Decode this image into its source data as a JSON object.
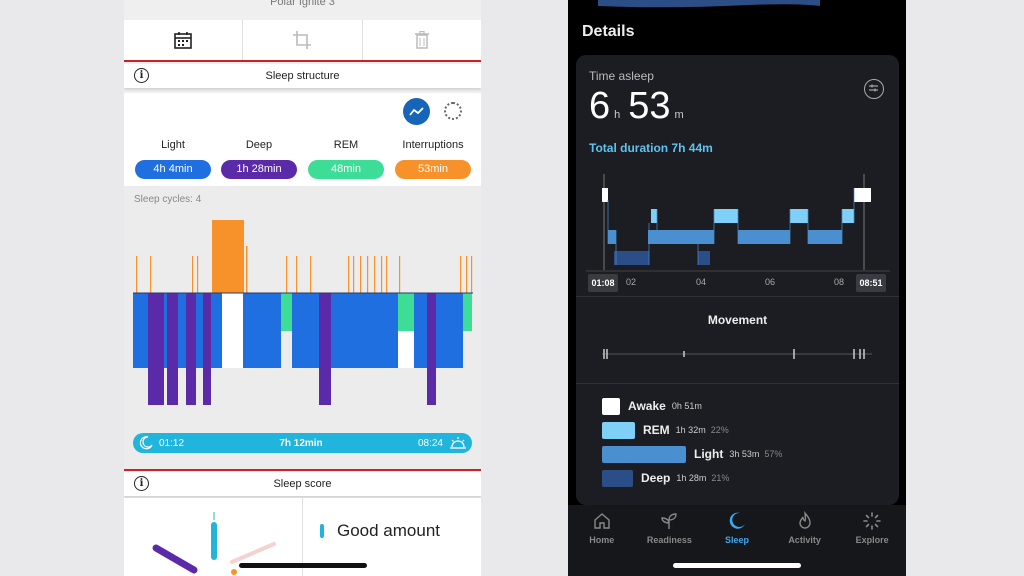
{
  "left_phone": {
    "device_name": "Polar Ignite 3",
    "toolbar": {
      "icons": [
        "calendar-icon",
        "crop-icon",
        "trash-icon"
      ]
    },
    "sleep_structure": {
      "title": "Sleep structure",
      "stages": [
        {
          "label": "Light",
          "value": "4h 4min",
          "color": "#1f6fe0"
        },
        {
          "label": "Deep",
          "value": "1h 28min",
          "color": "#5a2aa8"
        },
        {
          "label": "REM",
          "value": "48min",
          "color": "#3ddc97"
        },
        {
          "label": "Interruptions",
          "value": "53min",
          "color": "#f7922b"
        }
      ],
      "sleep_cycles": "Sleep cycles: 4",
      "timeline": {
        "start": "01:12",
        "duration": "7h 12min",
        "end": "08:24"
      }
    },
    "sleep_score": {
      "title": "Sleep score",
      "item": "Good amount"
    }
  },
  "right_phone": {
    "section_title": "Details",
    "time_asleep": {
      "label": "Time asleep",
      "hours": "6",
      "hours_unit": "h",
      "minutes": "53",
      "minutes_unit": "m",
      "total": "Total duration 7h 44m"
    },
    "hypnogram": {
      "start_time": "01:08",
      "end_time": "08:51",
      "ticks": [
        "02",
        "04",
        "06",
        "08"
      ]
    },
    "movement_title": "Movement",
    "legend": [
      {
        "name": "Awake",
        "duration": "0h 51m",
        "percent": "",
        "color": "#ffffff"
      },
      {
        "name": "REM",
        "duration": "1h 32m",
        "percent": "22%",
        "color": "#7fd0f7"
      },
      {
        "name": "Light",
        "duration": "3h 53m",
        "percent": "57%",
        "color": "#4a8fcf"
      },
      {
        "name": "Deep",
        "duration": "1h 28m",
        "percent": "21%",
        "color": "#2c4e86"
      }
    ],
    "nav": [
      {
        "label": "Home",
        "icon": "home-icon",
        "active": false
      },
      {
        "label": "Readiness",
        "icon": "sprout-icon",
        "active": false
      },
      {
        "label": "Sleep",
        "icon": "moon-icon",
        "active": true
      },
      {
        "label": "Activity",
        "icon": "flame-icon",
        "active": false
      },
      {
        "label": "Explore",
        "icon": "explore-icon",
        "active": false
      }
    ]
  }
}
